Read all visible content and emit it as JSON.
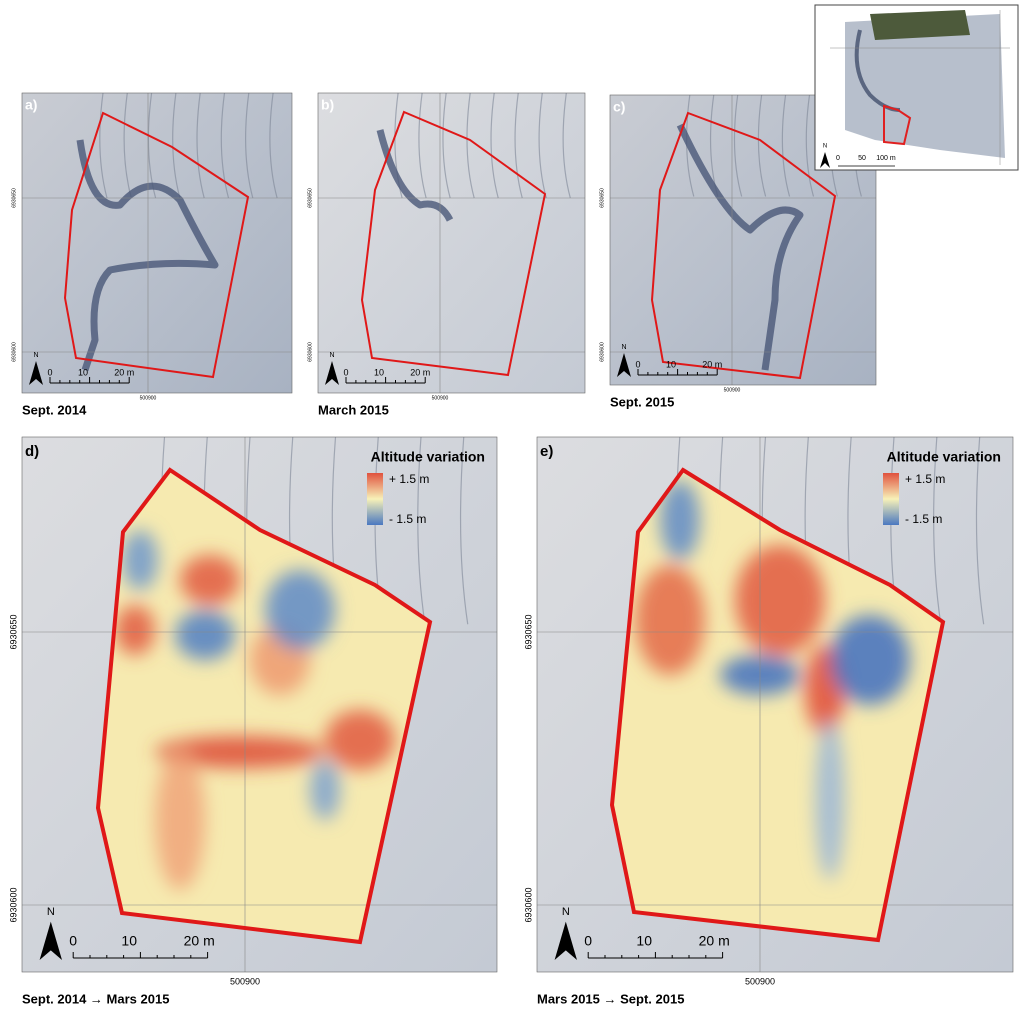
{
  "panels": [
    {
      "label": "a)",
      "caption": "Sept. 2014",
      "north": "N",
      "scale": [
        "0",
        "10",
        "20 m"
      ],
      "y_coords": [
        "6930650",
        "6930600"
      ],
      "x_coord": "500900"
    },
    {
      "label": "b)",
      "caption": "March 2015",
      "north": "N",
      "scale": [
        "0",
        "10",
        "20 m"
      ],
      "y_coords": [
        "6930650",
        "6930600"
      ],
      "x_coord": "500900"
    },
    {
      "label": "c)",
      "caption": "Sept. 2015",
      "north": "N",
      "scale": [
        "0",
        "10",
        "20 m"
      ],
      "y_coords": [
        "6930650",
        "6930600"
      ],
      "x_coord": "500900"
    },
    {
      "label": "d)",
      "caption": "Sept. 2014 → Mars 2015",
      "north": "N",
      "scale": [
        "0",
        "10",
        "20 m"
      ],
      "y_coords": [
        "6930650",
        "6930600"
      ],
      "x_coord": "500900",
      "legend": {
        "title": "Altitude variation",
        "high": "+ 1.5 m",
        "low": "- 1.5 m"
      }
    },
    {
      "label": "e)",
      "caption": "Mars 2015 → Sept. 2015",
      "north": "N",
      "scale": [
        "0",
        "10",
        "20 m"
      ],
      "y_coords": [
        "6930650",
        "6930600"
      ],
      "x_coord": "500900",
      "legend": {
        "title": "Altitude variation",
        "high": "+ 1.5 m",
        "low": "- 1.5 m"
      }
    }
  ],
  "inset": {
    "north": "N",
    "scale": [
      "0",
      "50",
      "100 m"
    ]
  }
}
